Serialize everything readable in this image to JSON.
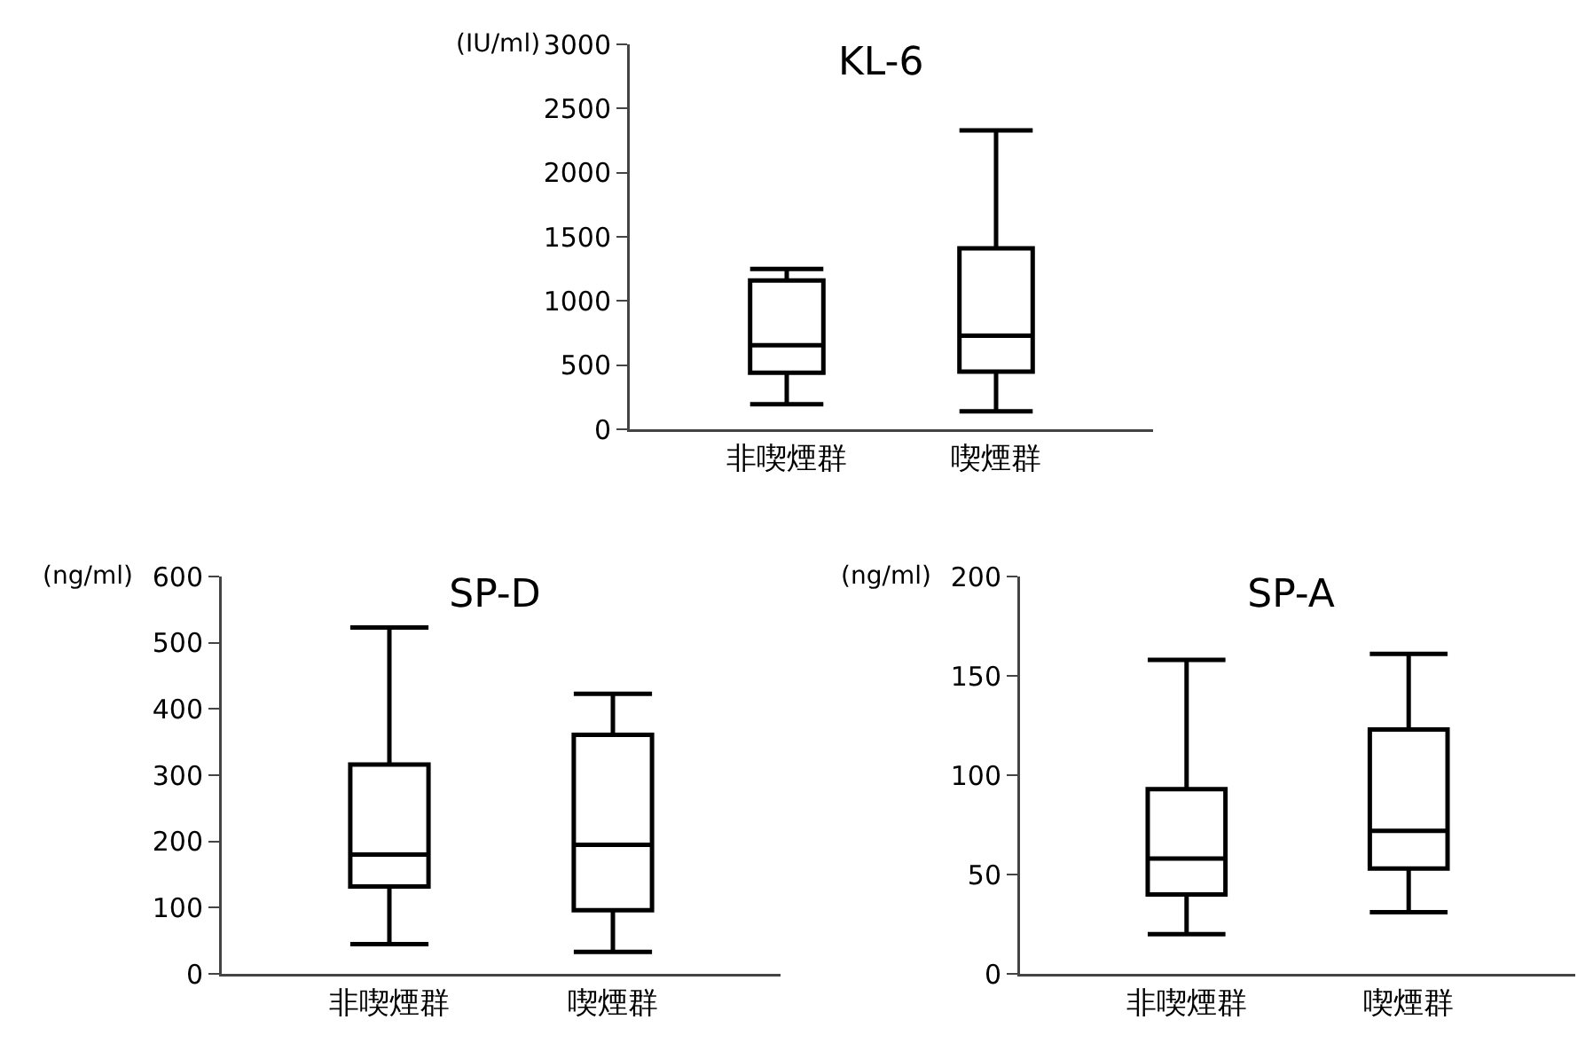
{
  "chart_data": [
    {
      "type": "box",
      "title": "KL-6",
      "ylabel": "(IU/ml)",
      "categories": [
        "非喫煙群",
        "喫煙群"
      ],
      "ylim": [
        0,
        3000
      ],
      "yticks": [
        0,
        500,
        1000,
        1500,
        2000,
        2500,
        3000
      ],
      "series": [
        {
          "color": "#000000",
          "boxes": [
            {
              "low": 195,
              "q1": 440,
              "median": 655,
              "q3": 1160,
              "high": 1250
            },
            {
              "low": 140,
              "q1": 450,
              "median": 730,
              "q3": 1410,
              "high": 2330
            }
          ]
        }
      ]
    },
    {
      "type": "box",
      "title": "SP-D",
      "ylabel": "(ng/ml)",
      "categories": [
        "非喫煙群",
        "喫煙群"
      ],
      "ylim": [
        0,
        600
      ],
      "yticks": [
        0,
        100,
        200,
        300,
        400,
        500,
        600
      ],
      "series": [
        {
          "color": "#000000",
          "boxes": [
            {
              "low": 45,
              "q1": 132,
              "median": 180,
              "q3": 316,
              "high": 523
            },
            {
              "low": 33,
              "q1": 96,
              "median": 195,
              "q3": 361,
              "high": 423
            }
          ]
        }
      ]
    },
    {
      "type": "box",
      "title": "SP-A",
      "ylabel": "(ng/ml)",
      "categories": [
        "非喫煙群",
        "喫煙群"
      ],
      "ylim": [
        0,
        200
      ],
      "yticks": [
        0,
        50,
        100,
        150,
        200
      ],
      "series": [
        {
          "color": "#000000",
          "boxes": [
            {
              "low": 20,
              "q1": 40,
              "median": 58,
              "q3": 93,
              "high": 158
            },
            {
              "low": 31,
              "q1": 53,
              "median": 72,
              "q3": 123,
              "high": 161
            }
          ]
        }
      ]
    }
  ]
}
